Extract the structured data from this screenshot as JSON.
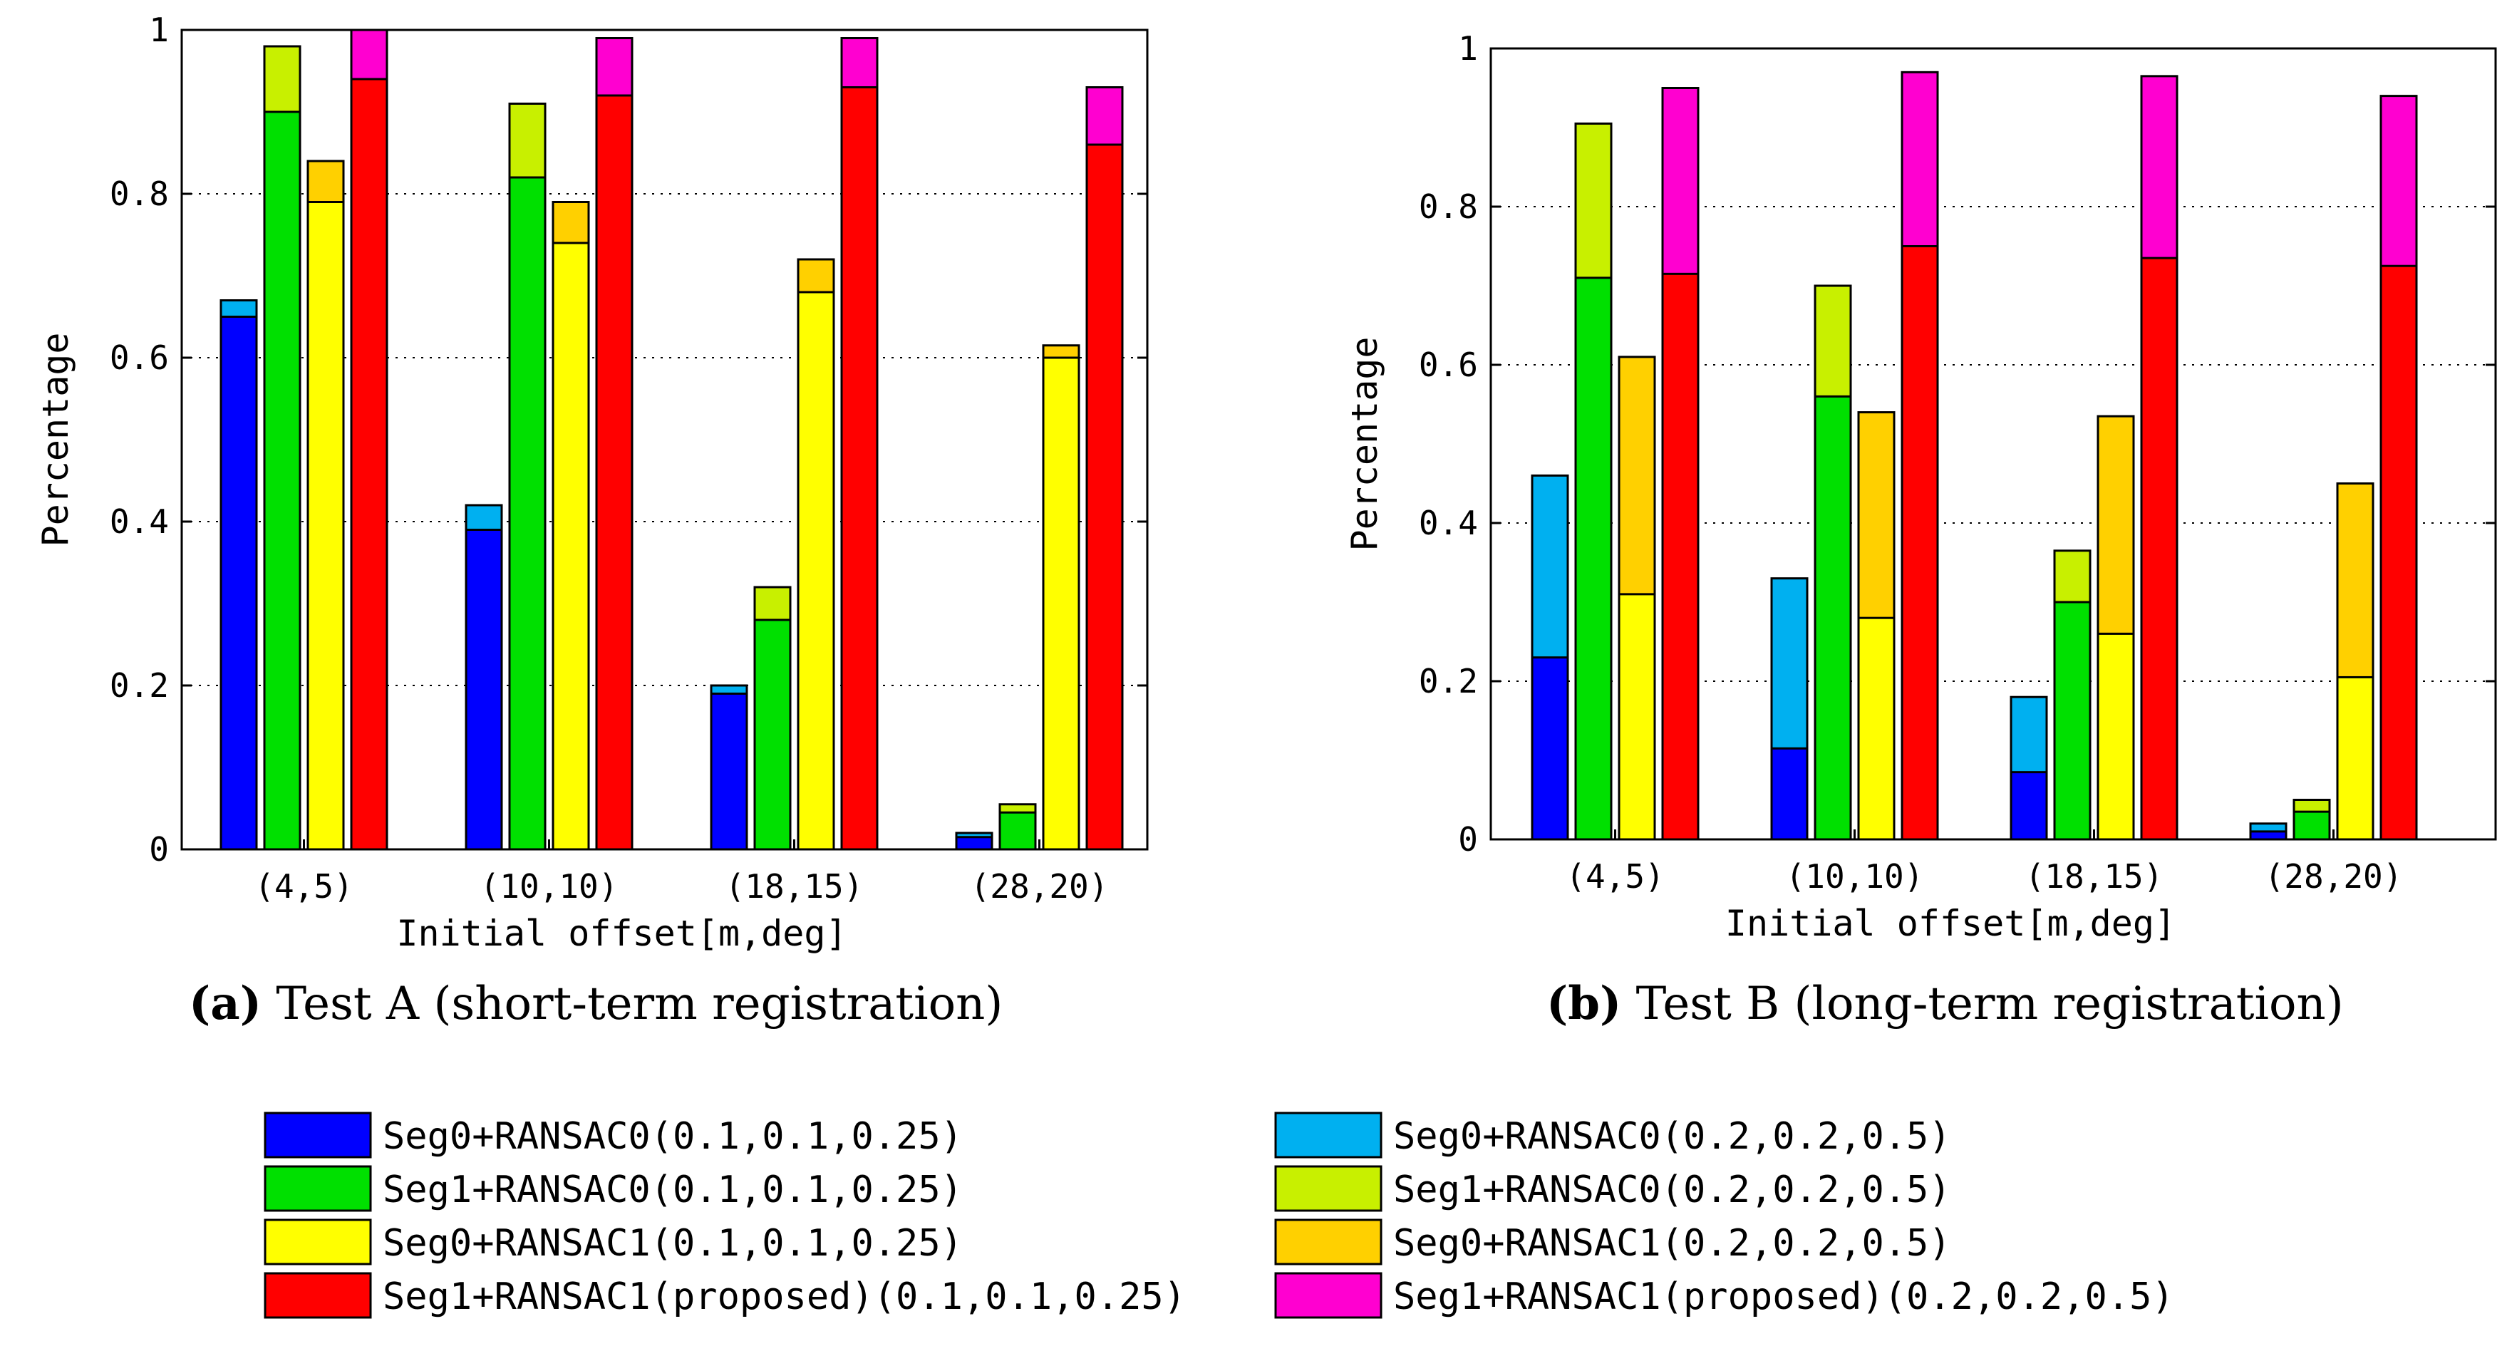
{
  "colors": {
    "seg0_r0_strict": "#0000ff",
    "seg1_r0_strict": "#00e000",
    "seg0_r1_strict": "#ffff00",
    "seg1_r1_strict": "#ff0000",
    "seg0_r0_loose": "#00b0f0",
    "seg1_r0_loose": "#c8f000",
    "seg0_r1_loose": "#ffd000",
    "seg1_r1_loose": "#ff00d0"
  },
  "legend": [
    {
      "label": "Seg0+RANSAC0(0.1,0.1,0.25)",
      "color_key": "seg0_r0_strict"
    },
    {
      "label": "Seg1+RANSAC0(0.1,0.1,0.25)",
      "color_key": "seg1_r0_strict"
    },
    {
      "label": "Seg0+RANSAC1(0.1,0.1,0.25)",
      "color_key": "seg0_r1_strict"
    },
    {
      "label": "Seg1+RANSAC1(proposed)(0.1,0.1,0.25)",
      "color_key": "seg1_r1_strict"
    },
    {
      "label": "Seg0+RANSAC0(0.2,0.2,0.5)",
      "color_key": "seg0_r0_loose"
    },
    {
      "label": "Seg1+RANSAC0(0.2,0.2,0.5)",
      "color_key": "seg1_r0_loose"
    },
    {
      "label": "Seg0+RANSAC1(0.2,0.2,0.5)",
      "color_key": "seg0_r1_loose"
    },
    {
      "label": "Seg1+RANSAC1(proposed)(0.2,0.2,0.5)",
      "color_key": "seg1_r1_loose"
    }
  ],
  "chart_data": [
    {
      "type": "bar",
      "title": "",
      "caption_letter": "(a)",
      "caption_text": " Test A (short-term registration)",
      "xlabel": "Initial offset[m,deg]",
      "ylabel": "Percentage",
      "ylim": [
        0,
        1
      ],
      "yticks": [
        "0",
        "0.2",
        "0.4",
        "0.6",
        "0.8",
        "1"
      ],
      "grid": true,
      "categories": [
        "(4,5)",
        "(10,10)",
        "(18,15)",
        "(28,20)"
      ],
      "series": [
        {
          "name": "Seg0+RANSAC0",
          "strict": [
            0.65,
            0.39,
            0.19,
            0.015
          ],
          "loose": [
            0.67,
            0.42,
            0.2,
            0.02
          ]
        },
        {
          "name": "Seg1+RANSAC0",
          "strict": [
            0.9,
            0.82,
            0.28,
            0.045
          ],
          "loose": [
            0.98,
            0.91,
            0.32,
            0.055
          ]
        },
        {
          "name": "Seg0+RANSAC1",
          "strict": [
            0.79,
            0.74,
            0.68,
            0.6
          ],
          "loose": [
            0.84,
            0.79,
            0.72,
            0.615
          ]
        },
        {
          "name": "Seg1+RANSAC1(proposed)",
          "strict": [
            0.94,
            0.92,
            0.93,
            0.86
          ],
          "loose": [
            1.0,
            0.99,
            0.99,
            0.93
          ]
        }
      ]
    },
    {
      "type": "bar",
      "title": "",
      "caption_letter": "(b)",
      "caption_text": " Test B (long-term registration)",
      "xlabel": "Initial offset[m,deg]",
      "ylabel": "Percentage",
      "ylim": [
        0,
        1
      ],
      "yticks": [
        "0",
        "0.2",
        "0.4",
        "0.6",
        "0.8",
        "1"
      ],
      "grid": true,
      "categories": [
        "(4,5)",
        "(10,10)",
        "(18,15)",
        "(28,20)"
      ],
      "series": [
        {
          "name": "Seg0+RANSAC0",
          "strict": [
            0.23,
            0.115,
            0.085,
            0.01
          ],
          "loose": [
            0.46,
            0.33,
            0.18,
            0.02
          ]
        },
        {
          "name": "Seg1+RANSAC0",
          "strict": [
            0.71,
            0.56,
            0.3,
            0.035
          ],
          "loose": [
            0.905,
            0.7,
            0.365,
            0.05
          ]
        },
        {
          "name": "Seg0+RANSAC1",
          "strict": [
            0.31,
            0.28,
            0.26,
            0.205
          ],
          "loose": [
            0.61,
            0.54,
            0.535,
            0.45
          ]
        },
        {
          "name": "Seg1+RANSAC1(proposed)",
          "strict": [
            0.715,
            0.75,
            0.735,
            0.725
          ],
          "loose": [
            0.95,
            0.97,
            0.965,
            0.94
          ]
        }
      ]
    }
  ]
}
